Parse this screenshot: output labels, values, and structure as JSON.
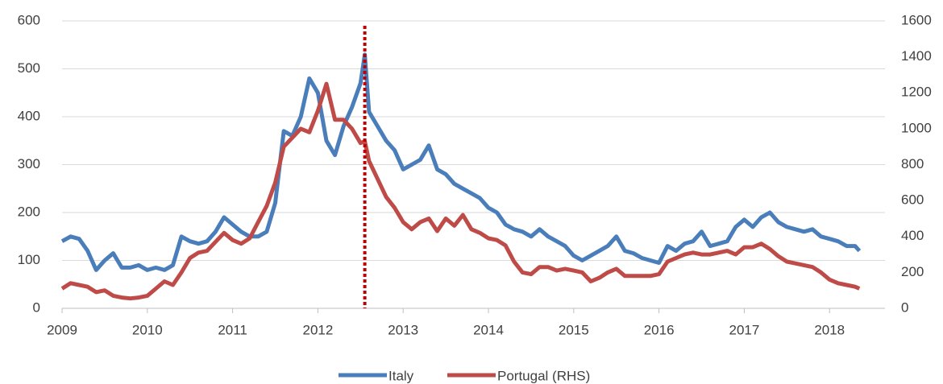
{
  "chart_data": {
    "type": "line",
    "x": [
      2009.0,
      2009.1,
      2009.2,
      2009.3,
      2009.4,
      2009.5,
      2009.6,
      2009.7,
      2009.8,
      2009.9,
      2010.0,
      2010.1,
      2010.2,
      2010.3,
      2010.4,
      2010.5,
      2010.6,
      2010.7,
      2010.8,
      2010.9,
      2011.0,
      2011.1,
      2011.2,
      2011.3,
      2011.4,
      2011.5,
      2011.6,
      2011.7,
      2011.8,
      2011.9,
      2012.0,
      2012.1,
      2012.2,
      2012.3,
      2012.4,
      2012.5,
      2012.55,
      2012.6,
      2012.7,
      2012.8,
      2012.9,
      2013.0,
      2013.1,
      2013.2,
      2013.3,
      2013.4,
      2013.5,
      2013.6,
      2013.7,
      2013.8,
      2013.9,
      2014.0,
      2014.1,
      2014.2,
      2014.3,
      2014.4,
      2014.5,
      2014.6,
      2014.7,
      2014.8,
      2014.9,
      2015.0,
      2015.1,
      2015.2,
      2015.3,
      2015.4,
      2015.5,
      2015.6,
      2015.7,
      2015.8,
      2015.9,
      2016.0,
      2016.1,
      2016.2,
      2016.3,
      2016.4,
      2016.5,
      2016.6,
      2016.7,
      2016.8,
      2016.9,
      2017.0,
      2017.1,
      2017.2,
      2017.3,
      2017.4,
      2017.5,
      2017.6,
      2017.7,
      2017.8,
      2017.9,
      2018.0,
      2018.1,
      2018.2,
      2018.3,
      2018.35
    ],
    "series": [
      {
        "name": "Italy",
        "color": "#4a7ebb",
        "axis": "y",
        "values": [
          140,
          150,
          145,
          120,
          80,
          100,
          115,
          85,
          85,
          90,
          80,
          85,
          80,
          90,
          150,
          140,
          135,
          140,
          160,
          190,
          175,
          160,
          150,
          150,
          160,
          220,
          370,
          360,
          400,
          480,
          450,
          350,
          320,
          380,
          420,
          470,
          530,
          410,
          380,
          350,
          330,
          290,
          300,
          310,
          340,
          290,
          280,
          260,
          250,
          240,
          230,
          210,
          200,
          175,
          165,
          160,
          150,
          165,
          150,
          140,
          130,
          110,
          100,
          110,
          120,
          130,
          150,
          120,
          115,
          105,
          100,
          95,
          130,
          120,
          135,
          140,
          160,
          130,
          135,
          140,
          170,
          185,
          170,
          190,
          200,
          180,
          170,
          165,
          160,
          165,
          150,
          145,
          140,
          130,
          130,
          120
        ]
      },
      {
        "name": "Portugal (RHS)",
        "color": "#be4b48",
        "axis": "y2",
        "values": [
          110,
          140,
          130,
          120,
          90,
          100,
          70,
          60,
          55,
          60,
          70,
          110,
          150,
          130,
          200,
          280,
          310,
          320,
          370,
          420,
          380,
          360,
          390,
          480,
          570,
          700,
          900,
          950,
          1000,
          980,
          1100,
          1250,
          1050,
          1050,
          1000,
          920,
          930,
          820,
          720,
          620,
          560,
          480,
          440,
          480,
          500,
          430,
          500,
          460,
          520,
          440,
          420,
          390,
          380,
          350,
          260,
          200,
          190,
          230,
          230,
          210,
          220,
          210,
          200,
          150,
          170,
          200,
          220,
          180,
          180,
          180,
          180,
          190,
          260,
          280,
          300,
          310,
          300,
          300,
          310,
          320,
          300,
          340,
          340,
          360,
          330,
          290,
          260,
          250,
          240,
          230,
          200,
          160,
          140,
          130,
          120,
          110
        ]
      }
    ],
    "xlim": [
      2009,
      2018.65
    ],
    "xticks": [
      2009,
      2010,
      2011,
      2012,
      2013,
      2014,
      2015,
      2016,
      2017,
      2018
    ],
    "ylim": [
      0,
      600
    ],
    "yticks": [
      0,
      100,
      200,
      300,
      400,
      500,
      600
    ],
    "y2lim": [
      0,
      1600
    ],
    "y2ticks": [
      0,
      200,
      400,
      600,
      800,
      1000,
      1200,
      1400,
      1600
    ],
    "grid": true,
    "legend": "bottom",
    "reference_line": {
      "x": 2012.55,
      "color": "#c00000"
    }
  }
}
